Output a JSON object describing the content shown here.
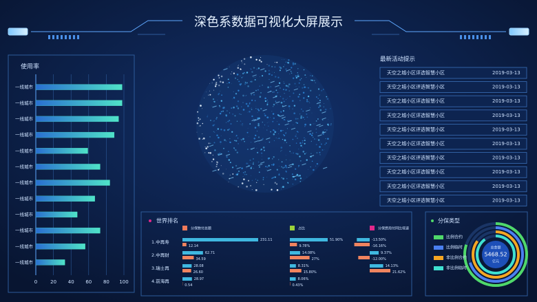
{
  "header": {
    "title": "深色系数据可视化大屏展示"
  },
  "chart_data": [
    {
      "type": "hbar",
      "title": "使用率",
      "categories": [
        "一线城市",
        "一线城市",
        "一线城市",
        "一线城市",
        "一线城市",
        "一线城市",
        "一线城市",
        "一线城市",
        "一线城市",
        "一线城市",
        "一线城市",
        "一线城市"
      ],
      "values": [
        98,
        98,
        94,
        89,
        59,
        73,
        84,
        67,
        47,
        73,
        56,
        33
      ],
      "xlim": [
        0,
        100
      ],
      "xticks": [
        0,
        20,
        40,
        60,
        80,
        100
      ],
      "color": "#4fe3c8",
      "grid": true
    },
    {
      "type": "grouped-hbar",
      "title": "世界排名",
      "categories": [
        "1.中再寿",
        "2.中再财",
        "3.瑞士再",
        "4.前海再"
      ],
      "groups": [
        {
          "name": "分保数付总额",
          "color": "#f07a5a",
          "series": [
            {
              "color": "#3fb8e0",
              "values": [
                231.11,
                62.71,
                28.08,
                28.97
              ],
              "value_labels": [
                "231.11",
                "62.71",
                "28.08",
                "28.97"
              ]
            },
            {
              "color": "#f0845f",
              "values": [
                12.14,
                34.59,
                26.6,
                0.54
              ],
              "value_labels": [
                "12.14",
                "34.59",
                "26.60",
                "0.54"
              ]
            }
          ]
        },
        {
          "name": "占比",
          "color": "#9ad23a",
          "series": [
            {
              "color": "#3fb8e0",
              "values": [
                51.9,
                14.08,
                8.31,
                8.06
              ],
              "value_labels": [
                "51.90%",
                "14.08%",
                "8.31%",
                "8.06%"
              ]
            },
            {
              "color": "#f0845f",
              "values": [
                9.78,
                27,
                15.8,
                0.43
              ],
              "value_labels": [
                "9.78%",
                "27%",
                "15.80%",
                "0.43%"
              ]
            }
          ]
        },
        {
          "name": "分保费用付同比增速",
          "color": "#e0288a",
          "series": [
            {
              "color": "#3fb8e0",
              "values": [
                -13.5,
                9.37,
                14.13,
                null
              ],
              "value_labels": [
                "-13.50%",
                "9.37%",
                "14.13%",
                null
              ]
            },
            {
              "color": "#f0845f",
              "values": [
                -16.16,
                -12,
                21.62,
                null
              ],
              "value_labels": [
                "-16.16%",
                "-12.00%",
                "21.62%",
                null
              ]
            }
          ]
        }
      ]
    },
    {
      "type": "donut",
      "title": "分保类型",
      "center_label": "总金额",
      "center_value": 5468.52,
      "center_unit": "亿元",
      "categories": [
        "比例合约",
        "比例临时",
        "非比例合约",
        "非比例临时"
      ],
      "values": [
        80,
        70,
        85,
        90
      ],
      "colors": [
        "#4fd86a",
        "#4a7ff0",
        "#f5a623",
        "#3fe0d0"
      ]
    }
  ],
  "activities": {
    "title": "最新活动提示",
    "items": [
      {
        "text": "天空之城小区评选智慧小区",
        "date": "2019-03-13"
      },
      {
        "text": "天空之城小区评选智慧小区",
        "date": "2019-03-13"
      },
      {
        "text": "天空之城小区评选智慧小区",
        "date": "2019-03-13"
      },
      {
        "text": "天空之城小区评选智慧小区",
        "date": "2019-03-13"
      },
      {
        "text": "天空之城小区评选智慧小区",
        "date": "2019-03-13"
      },
      {
        "text": "天空之城小区评选智慧小区",
        "date": "2019-03-13"
      },
      {
        "text": "天空之城小区评选智慧小区",
        "date": "2019-03-13"
      },
      {
        "text": "天空之城小区评选智慧小区",
        "date": "2019-03-13"
      },
      {
        "text": "天空之城小区评选智慧小区",
        "date": "2019-03-13"
      },
      {
        "text": "天空之城小区评选智慧小区",
        "date": "2019-03-13"
      }
    ]
  }
}
